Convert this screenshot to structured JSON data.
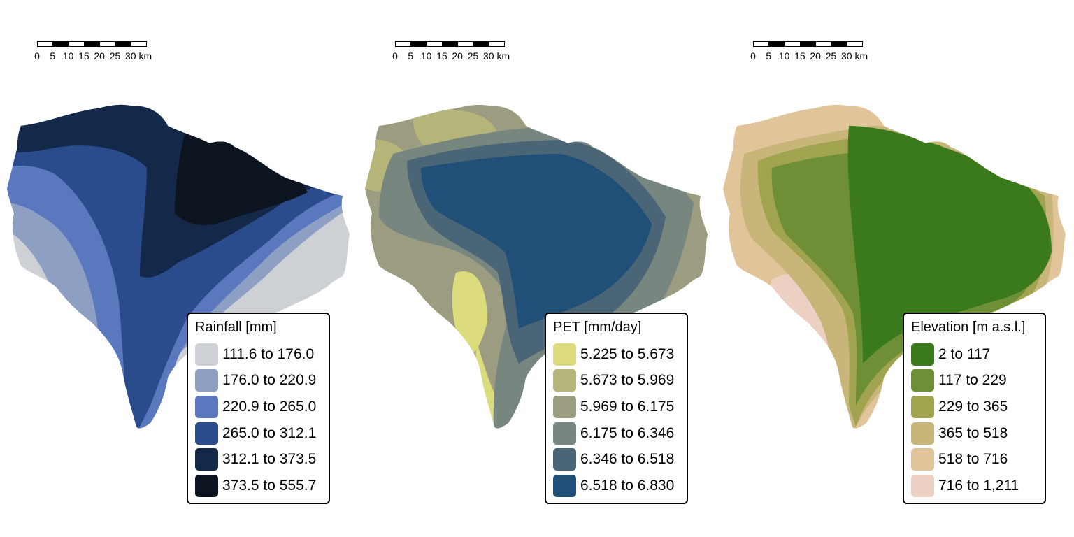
{
  "scalebar": {
    "ticks": [
      "0",
      "5",
      "10",
      "15",
      "20",
      "25",
      "30"
    ],
    "unit": "km"
  },
  "panels": [
    {
      "id": "rainfall",
      "legend": {
        "title": "Rainfall [mm]",
        "items": [
          {
            "label": "111.6 to 176.0",
            "color": "#cdd0d5"
          },
          {
            "label": "176.0 to 220.9",
            "color": "#8d9fc2"
          },
          {
            "label": "220.9 to 265.0",
            "color": "#5a78be"
          },
          {
            "label": "265.0 to 312.1",
            "color": "#2a4c8c"
          },
          {
            "label": "312.1 to 373.5",
            "color": "#14284a"
          },
          {
            "label": "373.5 to 555.7",
            "color": "#0c141f"
          }
        ]
      }
    },
    {
      "id": "pet",
      "legend": {
        "title": "PET [mm/day]",
        "items": [
          {
            "label": "5.225 to 5.673",
            "color": "#dcdc7c"
          },
          {
            "label": "5.673 to 5.969",
            "color": "#b5b57a"
          },
          {
            "label": "5.969 to 6.175",
            "color": "#9c9c80"
          },
          {
            "label": "6.175 to 6.346",
            "color": "#788680"
          },
          {
            "label": "6.346 to 6.518",
            "color": "#4a6676"
          },
          {
            "label": "6.518 to 6.830",
            "color": "#205077"
          }
        ]
      }
    },
    {
      "id": "elevation",
      "legend": {
        "title": "Elevation [m a.s.l.]",
        "items": [
          {
            "label": "2 to 117",
            "color": "#3a7a1c"
          },
          {
            "label": "117 to 229",
            "color": "#6e8f35"
          },
          {
            "label": "229 to 365",
            "color": "#a0a44f"
          },
          {
            "label": "365 to 518",
            "color": "#c8b57a"
          },
          {
            "label": "518 to 716",
            "color": "#e2c49a"
          },
          {
            "label": "716 to 1,211",
            "color": "#ecd1c2"
          }
        ]
      }
    }
  ]
}
